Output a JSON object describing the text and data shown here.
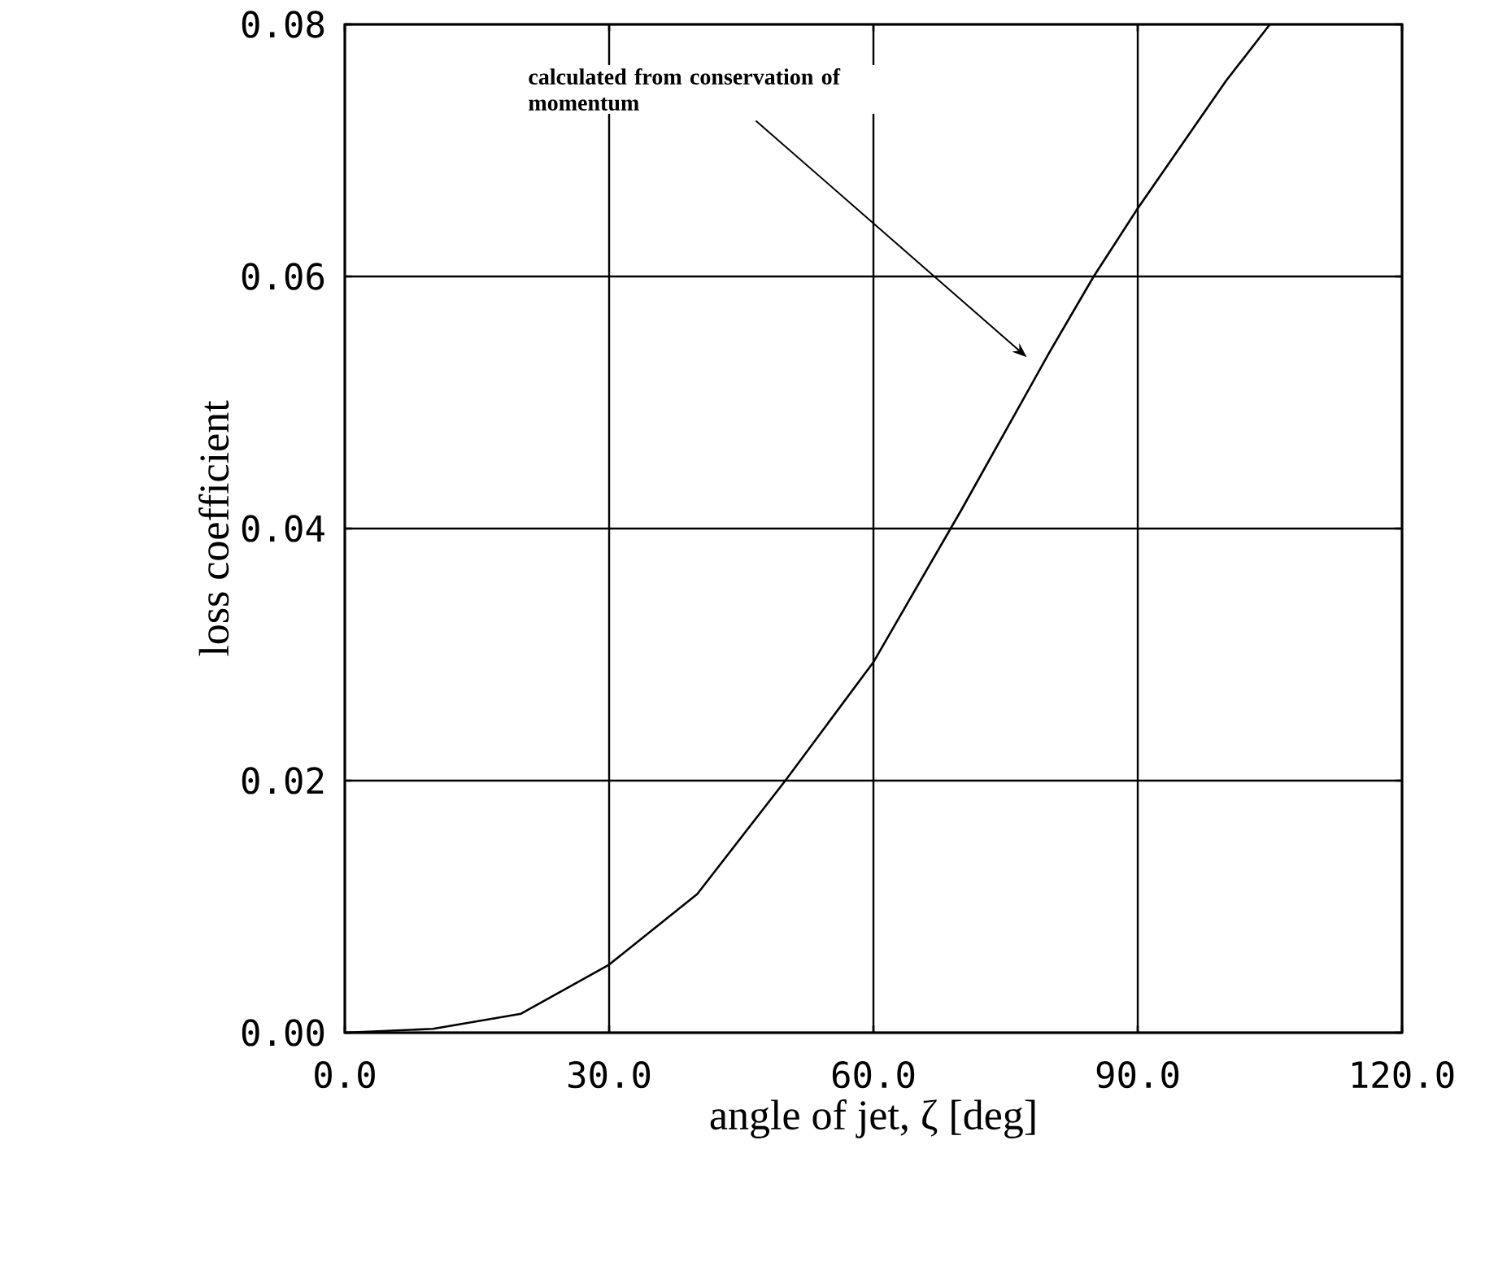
{
  "chart_data": {
    "type": "line",
    "xlabel": "angle of jet, ζ [deg]",
    "ylabel": "loss coefficient",
    "x": [
      0,
      10,
      20,
      30,
      40,
      50,
      60,
      70,
      80,
      85,
      90,
      100,
      105
    ],
    "series": [
      {
        "color": "#000000",
        "values": [
          0,
          0.0003,
          0.0015,
          0.0054,
          0.011,
          0.02,
          0.0294,
          0.0415,
          0.054,
          0.06,
          0.0654,
          0.0755,
          0.08
        ]
      }
    ],
    "xlim": [
      0,
      120
    ],
    "ylim": [
      0,
      0.08
    ],
    "xticks": [
      {
        "value": 0,
        "label": "0.0"
      },
      {
        "value": 30,
        "label": "30.0"
      },
      {
        "value": 60,
        "label": "60.0"
      },
      {
        "value": 90,
        "label": "90.0"
      },
      {
        "value": 120,
        "label": "120.0"
      }
    ],
    "yticks": [
      {
        "value": 0,
        "label": "0.00"
      },
      {
        "value": 0.02,
        "label": "0.02"
      },
      {
        "value": 0.04,
        "label": "0.04"
      },
      {
        "value": 0.06,
        "label": "0.06"
      },
      {
        "value": 0.08,
        "label": "0.08"
      }
    ],
    "grid": true,
    "marker": "none",
    "line_style": "solid",
    "annotations": [
      "calculated from conservation of momentum"
    ]
  }
}
